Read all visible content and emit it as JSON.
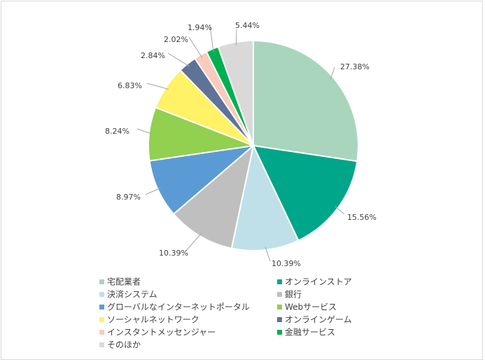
{
  "chart_data": {
    "type": "pie",
    "title": "",
    "categories": [
      "宅配業者",
      "オンラインストア",
      "決済システム",
      "銀行",
      "グローバルなインターネットポータル",
      "Webサービス",
      "ソーシャルネットワーク",
      "オンラインゲーム",
      "インスタントメッセンジャー",
      "金融サービス",
      "そのほか"
    ],
    "values": [
      27.38,
      15.56,
      10.39,
      10.39,
      8.97,
      8.24,
      6.83,
      2.84,
      2.02,
      1.94,
      5.44
    ],
    "labels": [
      "27.38%",
      "15.56%",
      "10.39%",
      "10.39%",
      "8.97%",
      "8.24%",
      "6.83%",
      "2.84%",
      "2.02%",
      "1.94%",
      "5.44%"
    ],
    "colors": [
      "#a9d5bd",
      "#00a68a",
      "#bfe0e8",
      "#bfbfbf",
      "#5b9bd5",
      "#92d050",
      "#fff266",
      "#5f7399",
      "#f8cbbd",
      "#00b050",
      "#d9d9d9"
    ],
    "legend_position": "bottom"
  }
}
